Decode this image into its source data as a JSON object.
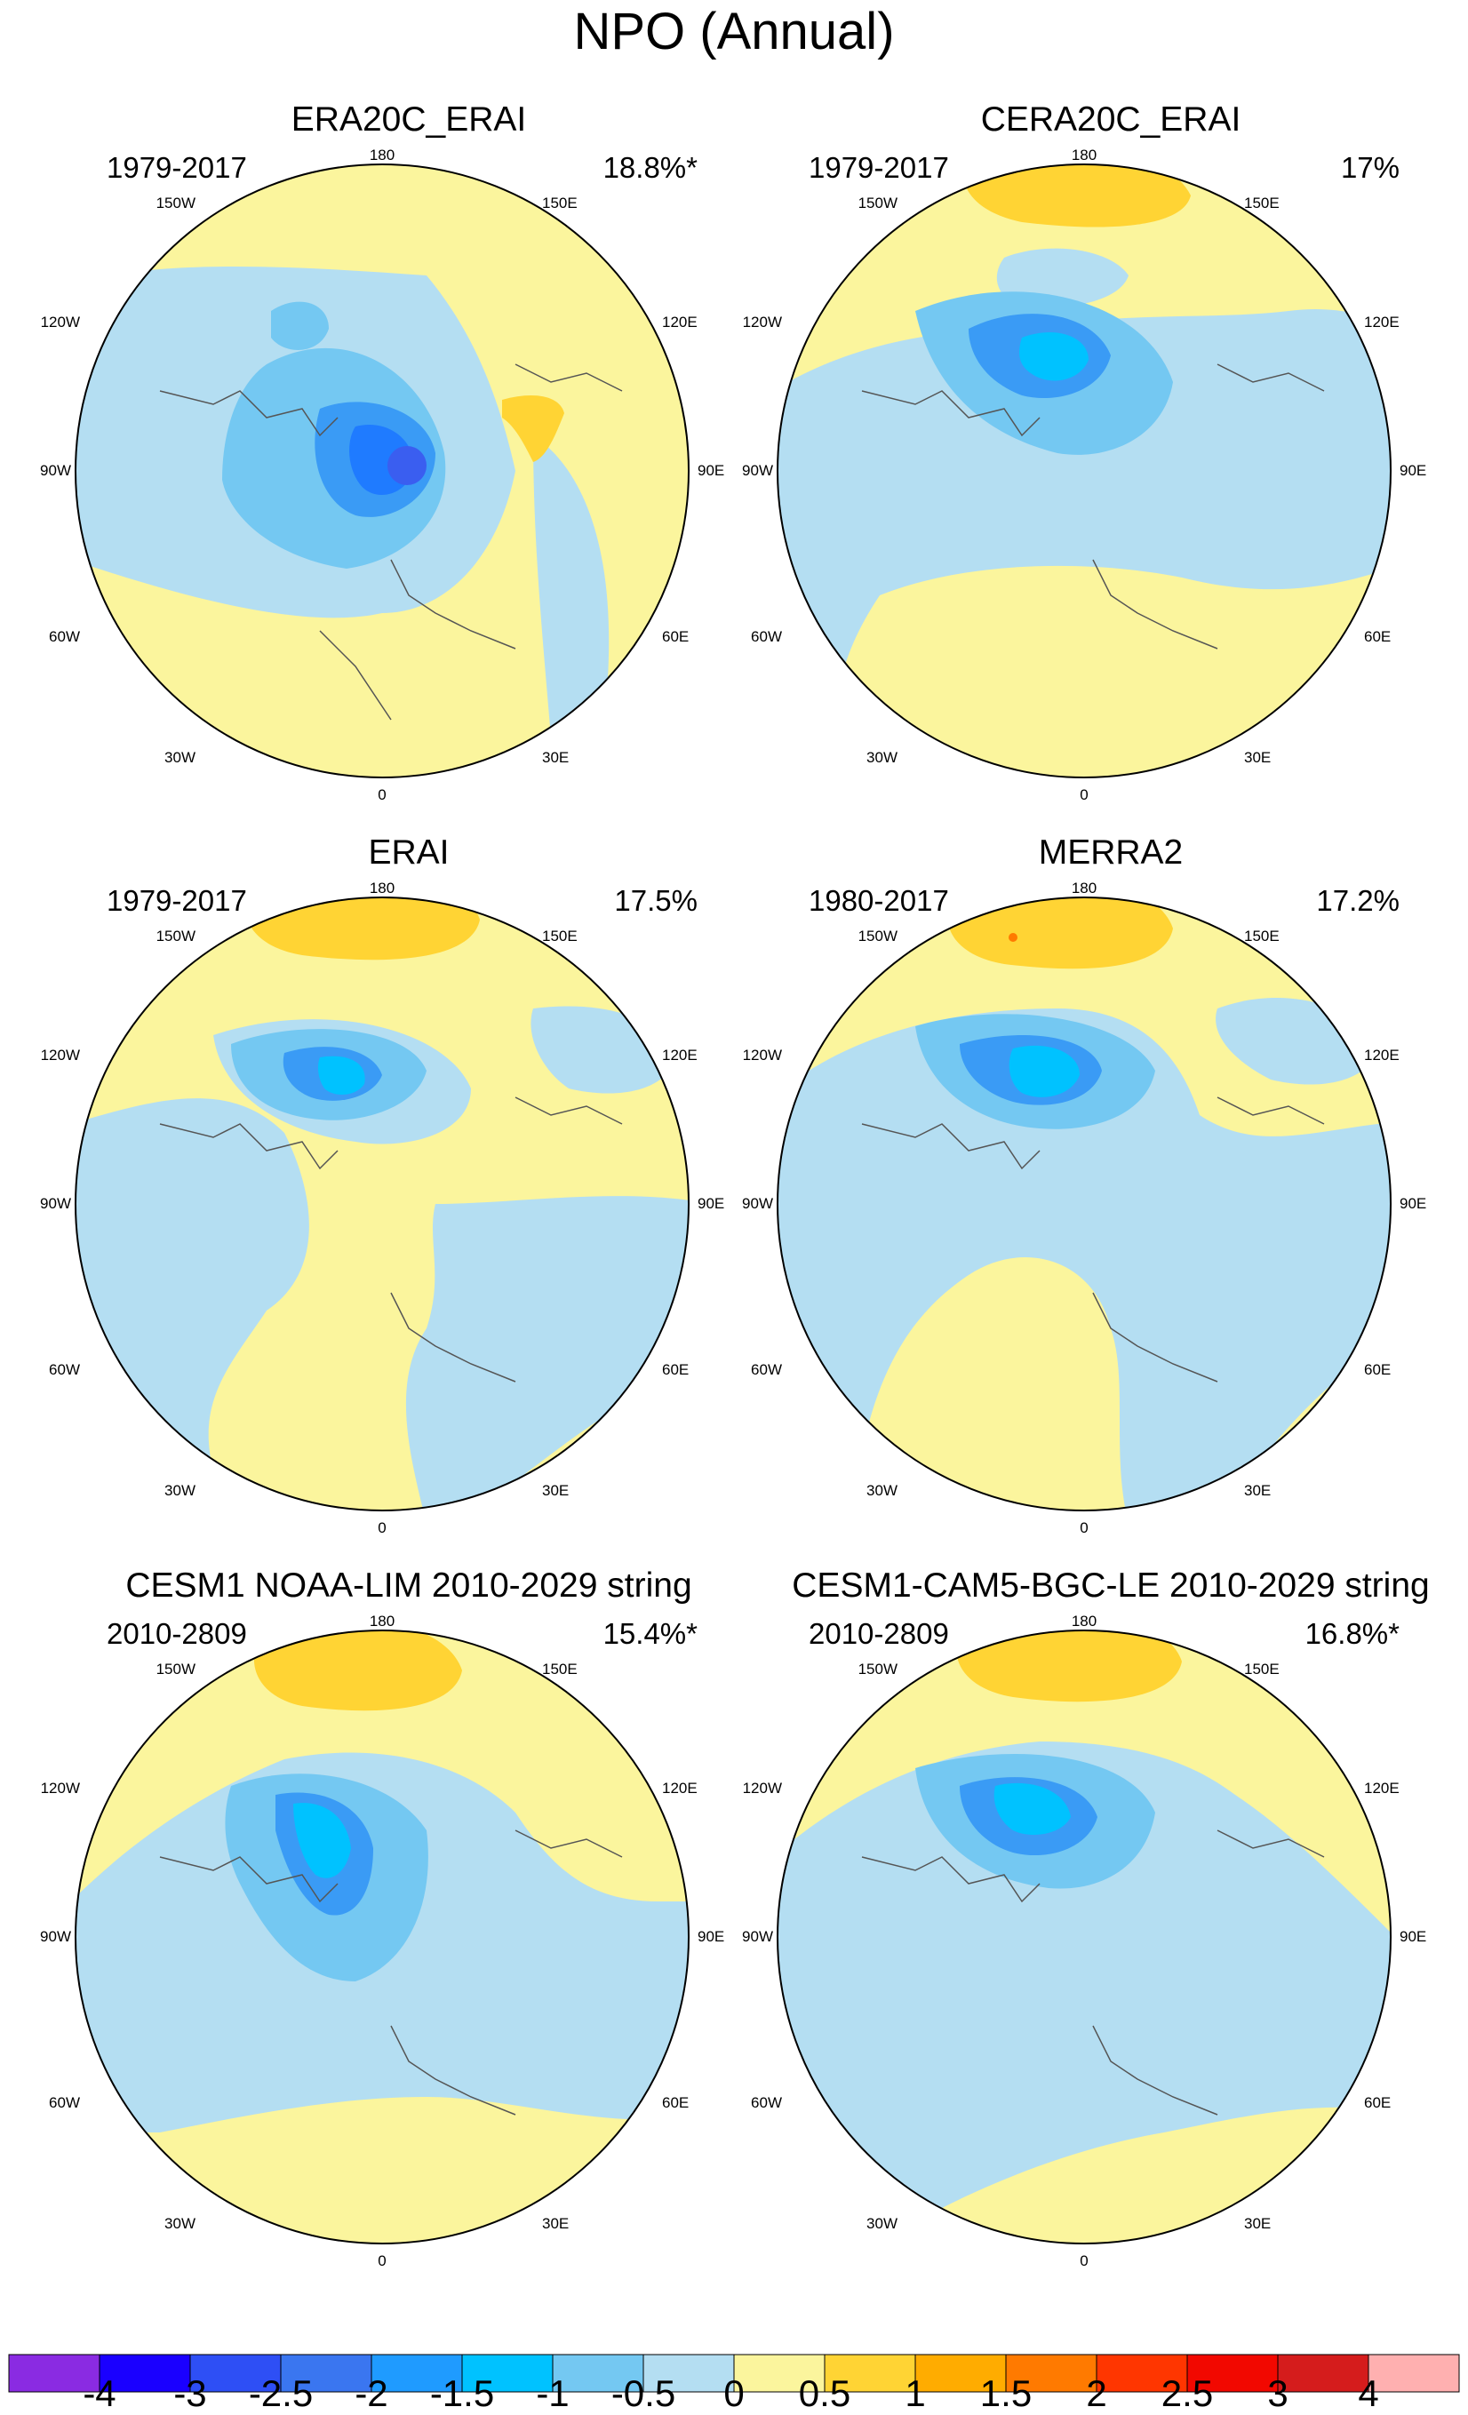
{
  "title": "NPO (Annual)",
  "panels": [
    {
      "title": "ERA20C_ERAI",
      "period": "1979-2017",
      "percent": "18.8%*"
    },
    {
      "title": "CERA20C_ERAI",
      "period": "1979-2017",
      "percent": "17%"
    },
    {
      "title": "ERAI",
      "period": "1979-2017",
      "percent": "17.5%"
    },
    {
      "title": "MERRA2",
      "period": "1980-2017",
      "percent": "17.2%"
    },
    {
      "title": "CESM1 NOAA-LIM 2010-2029 string",
      "period": "2010-2809",
      "percent": "15.4%*"
    },
    {
      "title": "CESM1-CAM5-BGC-LE 2010-2029 string",
      "period": "2010-2809",
      "percent": "16.8%*"
    }
  ],
  "lon_labels": {
    "top": "180",
    "ur1": "150E",
    "ur2": "120E",
    "right": "90E",
    "lr1": "60E",
    "lr2": "30E",
    "bottom": "0",
    "ll2": "30W",
    "ll1": "60W",
    "left": "90W",
    "ul2": "120W",
    "ul1": "150W"
  },
  "colorbar": {
    "labels": [
      "-4",
      "-3",
      "-2.5",
      "-2",
      "-1.5",
      "-1",
      "-0.5",
      "0",
      "0.5",
      "1",
      "1.5",
      "2",
      "2.5",
      "3",
      "4"
    ],
    "colors": [
      "#8a2be2",
      "#1a00ff",
      "#2e4ff5",
      "#3a76f0",
      "#1f9bff",
      "#00c2ff",
      "#74c8f2",
      "#b4def2",
      "#fbf59d",
      "#ffd434",
      "#ffac00",
      "#ff7a00",
      "#ff3600",
      "#f20800",
      "#d51c1c",
      "#ffb0b0"
    ]
  }
}
